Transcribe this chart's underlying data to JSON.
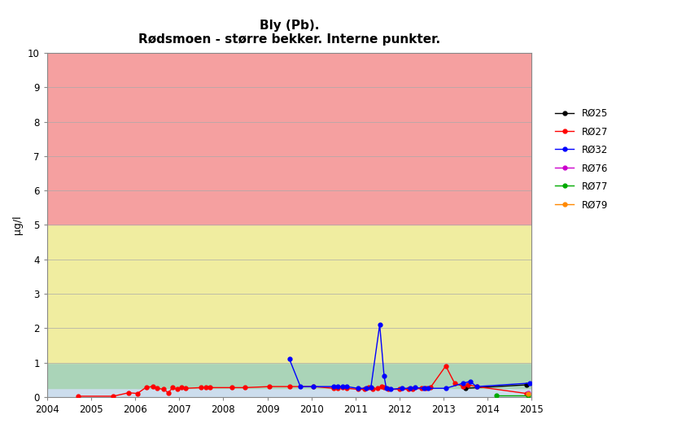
{
  "title_line1": "Bly (Pb).",
  "title_line2": "Rødsmoen - større bekker. Interne punkter.",
  "ylabel": "µg/l",
  "xlim": [
    2004,
    2015
  ],
  "ylim": [
    0,
    10
  ],
  "yticks": [
    0,
    1,
    2,
    3,
    4,
    5,
    6,
    7,
    8,
    9,
    10
  ],
  "xticks": [
    2004,
    2005,
    2006,
    2007,
    2008,
    2009,
    2010,
    2011,
    2012,
    2013,
    2014,
    2015
  ],
  "bg_bands": [
    {
      "ymin": 0,
      "ymax": 0.25,
      "color": "#ccdded"
    },
    {
      "ymin": 0.25,
      "ymax": 1.0,
      "color": "#aad4b8"
    },
    {
      "ymin": 1.0,
      "ymax": 5.0,
      "color": "#f0eda0"
    },
    {
      "ymin": 5.0,
      "ymax": 10.0,
      "color": "#f5a0a0"
    }
  ],
  "series": [
    {
      "label": "RØ25",
      "color": "#000000",
      "data": [
        [
          2013.5,
          0.25
        ],
        [
          2014.88,
          0.35
        ]
      ]
    },
    {
      "label": "RØ27",
      "color": "#ff0000",
      "data": [
        [
          2004.7,
          0.02
        ],
        [
          2005.5,
          0.02
        ],
        [
          2005.85,
          0.12
        ],
        [
          2006.05,
          0.1
        ],
        [
          2006.25,
          0.28
        ],
        [
          2006.4,
          0.3
        ],
        [
          2006.5,
          0.25
        ],
        [
          2006.65,
          0.22
        ],
        [
          2006.75,
          0.12
        ],
        [
          2006.85,
          0.27
        ],
        [
          2006.95,
          0.22
        ],
        [
          2007.05,
          0.28
        ],
        [
          2007.15,
          0.25
        ],
        [
          2007.5,
          0.27
        ],
        [
          2007.6,
          0.27
        ],
        [
          2007.7,
          0.27
        ],
        [
          2008.2,
          0.27
        ],
        [
          2008.5,
          0.27
        ],
        [
          2009.05,
          0.3
        ],
        [
          2009.5,
          0.3
        ],
        [
          2010.05,
          0.3
        ],
        [
          2010.5,
          0.25
        ],
        [
          2010.6,
          0.25
        ],
        [
          2010.7,
          0.27
        ],
        [
          2010.8,
          0.25
        ],
        [
          2011.05,
          0.22
        ],
        [
          2011.2,
          0.22
        ],
        [
          2011.3,
          0.27
        ],
        [
          2011.4,
          0.22
        ],
        [
          2011.5,
          0.25
        ],
        [
          2011.6,
          0.3
        ],
        [
          2011.65,
          0.27
        ],
        [
          2011.75,
          0.22
        ],
        [
          2012.0,
          0.22
        ],
        [
          2012.2,
          0.22
        ],
        [
          2012.3,
          0.22
        ],
        [
          2012.5,
          0.25
        ],
        [
          2012.6,
          0.25
        ],
        [
          2012.7,
          0.27
        ],
        [
          2013.05,
          0.9
        ],
        [
          2013.25,
          0.4
        ],
        [
          2013.45,
          0.3
        ],
        [
          2013.55,
          0.35
        ],
        [
          2013.75,
          0.3
        ],
        [
          2014.88,
          0.1
        ]
      ]
    },
    {
      "label": "RØ32",
      "color": "#0000ff",
      "data": [
        [
          2009.5,
          1.1
        ],
        [
          2009.75,
          0.3
        ],
        [
          2010.05,
          0.3
        ],
        [
          2010.5,
          0.3
        ],
        [
          2010.6,
          0.3
        ],
        [
          2010.7,
          0.3
        ],
        [
          2010.8,
          0.3
        ],
        [
          2011.05,
          0.25
        ],
        [
          2011.25,
          0.25
        ],
        [
          2011.35,
          0.27
        ],
        [
          2011.55,
          2.1
        ],
        [
          2011.65,
          0.6
        ],
        [
          2011.7,
          0.25
        ],
        [
          2011.8,
          0.22
        ],
        [
          2012.05,
          0.25
        ],
        [
          2012.25,
          0.25
        ],
        [
          2012.35,
          0.27
        ],
        [
          2012.55,
          0.25
        ],
        [
          2012.65,
          0.25
        ],
        [
          2013.05,
          0.25
        ],
        [
          2013.45,
          0.4
        ],
        [
          2013.6,
          0.45
        ],
        [
          2013.75,
          0.3
        ],
        [
          2014.95,
          0.4
        ]
      ]
    },
    {
      "label": "RØ76",
      "color": "#cc00cc",
      "data": [
        [
          2014.92,
          0.12
        ]
      ]
    },
    {
      "label": "RØ77",
      "color": "#00aa00",
      "data": [
        [
          2014.2,
          0.05
        ],
        [
          2014.92,
          0.05
        ]
      ]
    },
    {
      "label": "RØ79",
      "color": "#ff8800",
      "data": [
        [
          2014.92,
          0.1
        ]
      ]
    }
  ],
  "bg_color": "#ffffff",
  "grid_color": "#aaaaaa",
  "title_fontsize": 11,
  "label_fontsize": 9,
  "tick_fontsize": 8.5,
  "legend_fontsize": 8.5
}
